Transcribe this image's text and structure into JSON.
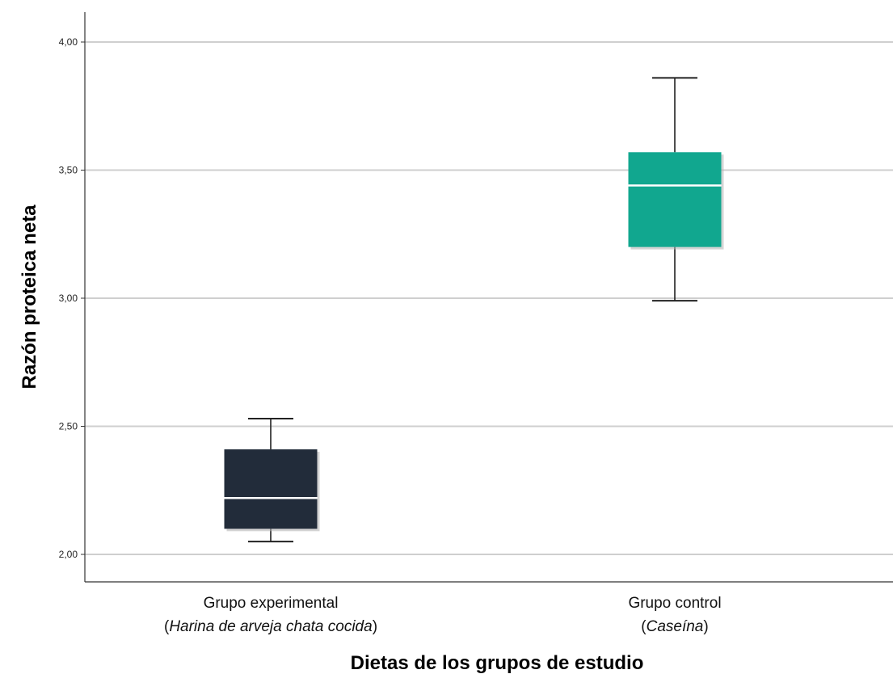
{
  "chart_data": {
    "type": "boxplot",
    "xlabel": "Dietas de los grupos de estudio",
    "ylabel": "Razón proteica neta",
    "ylim": [
      1.9,
      4.1
    ],
    "yticks": [
      2.0,
      2.5,
      3.0,
      3.5,
      4.0
    ],
    "ytick_labels": [
      "2,00",
      "2,50",
      "3,00",
      "3,50",
      "4,00"
    ],
    "grid": true,
    "categories": [
      {
        "label_line1": "Grupo experimental",
        "label_line2_pre": "(",
        "label_line2_italic": "Harina de arveja chata cocida",
        "label_line2_post": ")",
        "min": 2.05,
        "q1": 2.1,
        "median": 2.22,
        "q3": 2.41,
        "max": 2.53,
        "color": "#222c3a"
      },
      {
        "label_line1": "Grupo control",
        "label_line2_pre": "(",
        "label_line2_italic": "Caseína",
        "label_line2_post": ")",
        "min": 2.99,
        "q1": 3.2,
        "median": 3.44,
        "q3": 3.57,
        "max": 3.86,
        "color": "#11a78f"
      }
    ]
  }
}
